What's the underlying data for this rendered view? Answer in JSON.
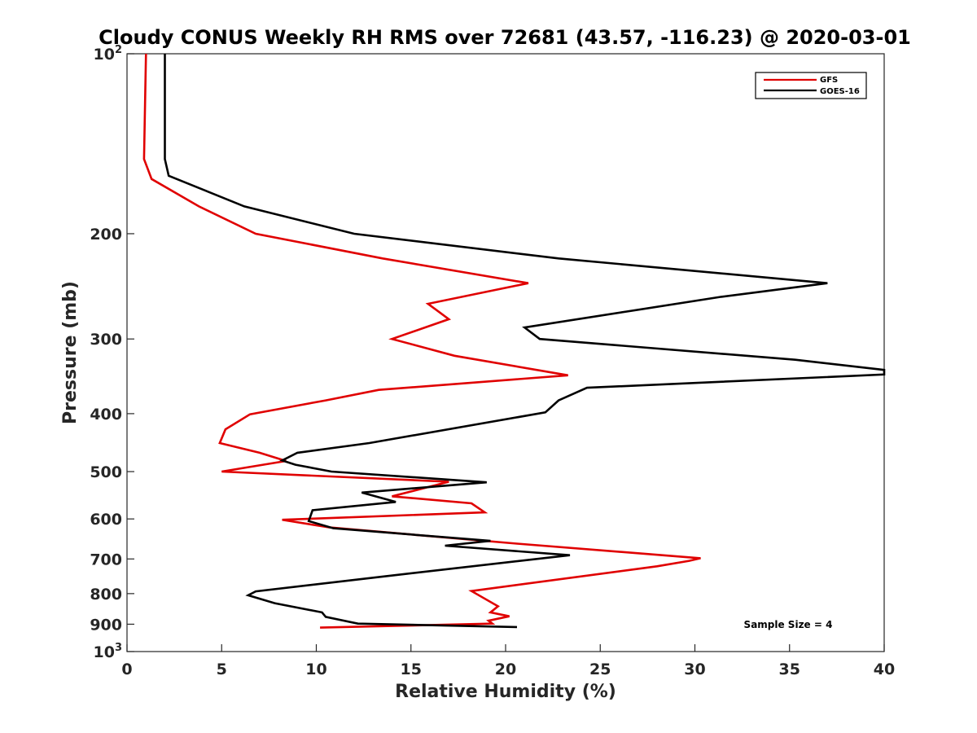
{
  "chart_data": {
    "type": "line",
    "title": "Cloudy CONUS Weekly RH RMS over 72681 (43.57, -116.23) @ 2020-03-01",
    "xlabel": "Relative Humidity (%)",
    "ylabel": "Pressure (mb)",
    "xlim": [
      0,
      40
    ],
    "ylim": [
      100,
      1000
    ],
    "y_scale": "log",
    "y_reversed": true,
    "grid": false,
    "legend_position": "top-right",
    "x_ticks": [
      "0",
      "5",
      "10",
      "15",
      "20",
      "25",
      "30",
      "35",
      "40"
    ],
    "y_ticks": [
      {
        "value": 100,
        "base": "10",
        "exp": "2"
      },
      {
        "value": 200,
        "label": "200"
      },
      {
        "value": 300,
        "label": "300"
      },
      {
        "value": 400,
        "label": "400"
      },
      {
        "value": 500,
        "label": "500"
      },
      {
        "value": 600,
        "label": "600"
      },
      {
        "value": 700,
        "label": "700"
      },
      {
        "value": 800,
        "label": "800"
      },
      {
        "value": 900,
        "label": "900"
      },
      {
        "value": 1000,
        "base": "10",
        "exp": "3"
      }
    ],
    "series": [
      {
        "name": "GFS",
        "color": "#e00000",
        "points": [
          [
            1.0,
            100
          ],
          [
            0.9,
            150
          ],
          [
            1.3,
            162
          ],
          [
            3.8,
            180
          ],
          [
            6.8,
            200
          ],
          [
            13.5,
            220
          ],
          [
            21.2,
            242
          ],
          [
            15.9,
            262
          ],
          [
            17.0,
            278
          ],
          [
            14.0,
            300
          ],
          [
            17.3,
            320
          ],
          [
            23.3,
            345
          ],
          [
            13.3,
            365
          ],
          [
            10.5,
            380
          ],
          [
            6.5,
            401
          ],
          [
            5.2,
            425
          ],
          [
            4.9,
            448
          ],
          [
            7.0,
            465
          ],
          [
            8.4,
            480
          ],
          [
            5.0,
            500
          ],
          [
            17.0,
            520
          ],
          [
            14.0,
            550
          ],
          [
            18.2,
            565
          ],
          [
            18.9,
            585
          ],
          [
            8.2,
            602
          ],
          [
            10.7,
            620
          ],
          [
            20.6,
            660
          ],
          [
            30.3,
            698
          ],
          [
            29.7,
            705
          ],
          [
            28.0,
            720
          ],
          [
            18.2,
            792
          ],
          [
            19.6,
            840
          ],
          [
            19.2,
            860
          ],
          [
            20.2,
            873
          ],
          [
            19.1,
            888
          ],
          [
            19.3,
            898
          ],
          [
            10.2,
            912
          ]
        ]
      },
      {
        "name": "GOES-16",
        "color": "#000000",
        "points": [
          [
            2.0,
            100
          ],
          [
            2.0,
            150
          ],
          [
            2.2,
            160
          ],
          [
            6.2,
            180
          ],
          [
            12.0,
            200
          ],
          [
            22.8,
            220
          ],
          [
            37.0,
            242
          ],
          [
            31.4,
            255
          ],
          [
            21.0,
            287
          ],
          [
            21.8,
            300
          ],
          [
            35.3,
            325
          ],
          [
            40.0,
            338
          ],
          [
            40.0,
            344
          ],
          [
            24.3,
            362
          ],
          [
            22.8,
            380
          ],
          [
            22.1,
            398
          ],
          [
            12.8,
            448
          ],
          [
            9.0,
            465
          ],
          [
            8.2,
            479
          ],
          [
            8.9,
            487
          ],
          [
            10.8,
            500
          ],
          [
            19.0,
            521
          ],
          [
            12.4,
            542
          ],
          [
            14.2,
            562
          ],
          [
            9.8,
            580
          ],
          [
            9.6,
            605
          ],
          [
            10.9,
            622
          ],
          [
            19.2,
            653
          ],
          [
            16.8,
            665
          ],
          [
            23.4,
            690
          ],
          [
            13.7,
            748
          ],
          [
            6.8,
            793
          ],
          [
            6.4,
            805
          ],
          [
            7.8,
            830
          ],
          [
            10.3,
            860
          ],
          [
            10.5,
            875
          ],
          [
            12.2,
            898
          ],
          [
            20.6,
            910
          ]
        ]
      }
    ],
    "legend": [
      "GFS",
      "GOES-16"
    ],
    "annotation": "Sample Size = 4"
  }
}
